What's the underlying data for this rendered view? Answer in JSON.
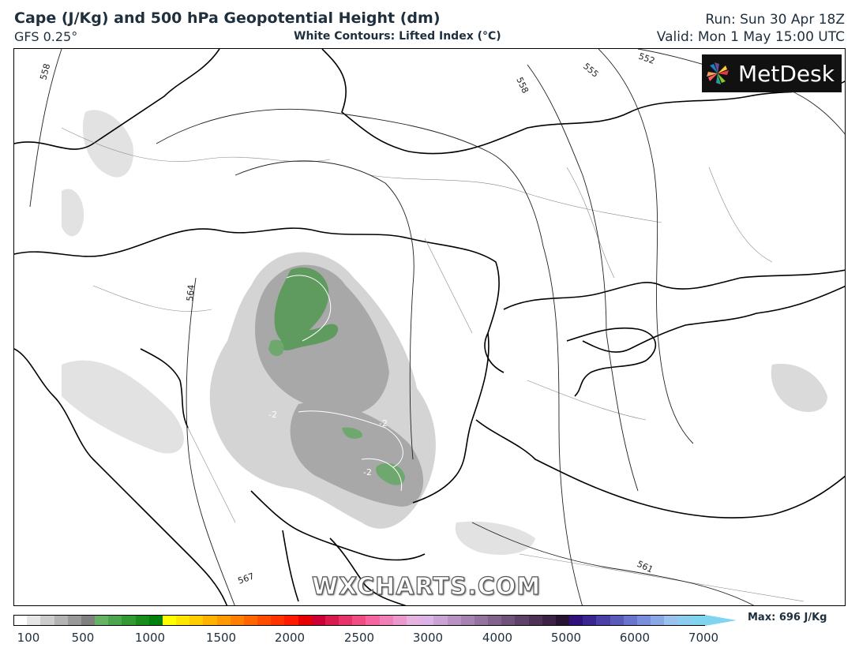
{
  "header": {
    "title": "Cape (J/Kg) and 500 hPa Geopotential Height (dm)",
    "model": "GFS 0.25°",
    "contours_note": "White Contours: Lifted Index (°C)",
    "run": "Run: Sun 30 Apr 18Z",
    "valid": "Valid: Mon 1 May 15:00 UTC"
  },
  "logo": {
    "text": "MetDesk",
    "icon": "metdesk-pinwheel-icon"
  },
  "watermark": "WXCHARTS.COM",
  "contour_labels": [
    "558",
    "558",
    "555",
    "552",
    "564",
    "567",
    "561"
  ],
  "lifted_index_labels": [
    "-2",
    "-2",
    "-2"
  ],
  "colorbar": {
    "ticks": [
      "100",
      "500",
      "1000",
      "1500",
      "2000",
      "2500",
      "3000",
      "4000",
      "5000",
      "6000",
      "7000"
    ],
    "max_label": "Max: 696 J/Kg",
    "colors": [
      "#ffffff",
      "#e6e6e6",
      "#cccccc",
      "#b3b3b3",
      "#999999",
      "#808080",
      "#66b366",
      "#4da64d",
      "#339933",
      "#1a8c1a",
      "#00800d",
      "#ffff00",
      "#ffe600",
      "#ffcc00",
      "#ffb300",
      "#ff9900",
      "#ff8000",
      "#ff6600",
      "#ff4d00",
      "#ff3300",
      "#ff1a00",
      "#e60000",
      "#cc0033",
      "#d91a4d",
      "#e6336b",
      "#f04d85",
      "#f566a0",
      "#f080b8",
      "#eb99cc",
      "#e6b3e0",
      "#dbb3e6",
      "#c9a3d4",
      "#b893c2",
      "#a683b0",
      "#94739e",
      "#82638c",
      "#70537a",
      "#5e4368",
      "#4c3356",
      "#3a2344",
      "#281332",
      "#30107a",
      "#3a2690",
      "#4a40a6",
      "#5a5abb",
      "#6a74cc",
      "#7a8edb",
      "#8aa8e6",
      "#9ac2ee",
      "#8acdee",
      "#7fd4f0"
    ]
  },
  "chart_data": {
    "type": "heatmap",
    "variable": "CAPE (J/Kg)",
    "overlays": [
      "500 hPa Geopotential Height (dm)",
      "Lifted Index (°C)"
    ],
    "colorbar_range": [
      100,
      7000
    ],
    "max_value": 696
  }
}
